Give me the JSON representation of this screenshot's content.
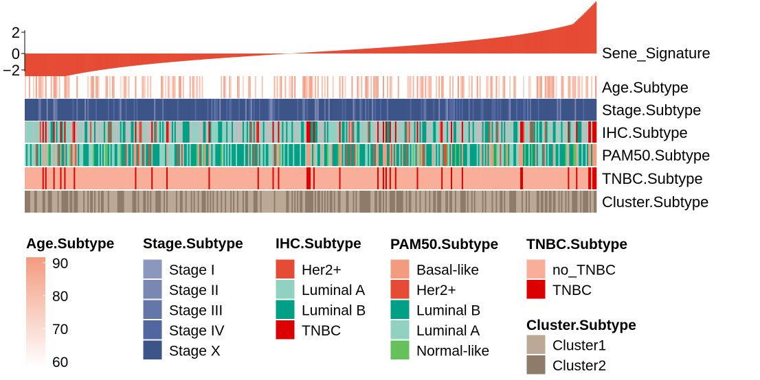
{
  "chart_data": {
    "type": "heatmap",
    "signature": {
      "label": "Sene_Signature",
      "y_ticks": [
        "2",
        "0",
        "−2"
      ],
      "ylim": [
        -2.2,
        2.5
      ],
      "color": "#E64B35",
      "n_samples": 420
    },
    "tracks": [
      {
        "key": "age",
        "label": "Age.Subtype"
      },
      {
        "key": "stage",
        "label": "Stage.Subtype"
      },
      {
        "key": "ihc",
        "label": "IHC.Subtype"
      },
      {
        "key": "pam50",
        "label": "PAM50.Subtype"
      },
      {
        "key": "tnbc",
        "label": "TNBC.Subtype"
      },
      {
        "key": "cluster",
        "label": "Cluster.Subtype"
      }
    ],
    "legends": {
      "age": {
        "title": "Age.Subtype",
        "ticks": [
          "90",
          "80",
          "70",
          "60"
        ],
        "range": [
          60,
          90
        ],
        "low_color": "#FFFFFF",
        "high_color": "#F39B7F"
      },
      "stage": {
        "title": "Stage.Subtype",
        "items": [
          {
            "label": "Stage I",
            "color": "#8B97BD"
          },
          {
            "label": "Stage II",
            "color": "#7A87B3"
          },
          {
            "label": "Stage III",
            "color": "#6576A8"
          },
          {
            "label": "Stage IV",
            "color": "#52669F"
          },
          {
            "label": "Stage X",
            "color": "#3C5488"
          }
        ]
      },
      "ihc": {
        "title": "IHC.Subtype",
        "items": [
          {
            "label": "Her2+",
            "color": "#E64B35"
          },
          {
            "label": "Luminal A",
            "color": "#91D1C2"
          },
          {
            "label": "Luminal B",
            "color": "#00A087"
          },
          {
            "label": "TNBC",
            "color": "#DC0000"
          }
        ]
      },
      "pam50": {
        "title": "PAM50.Subtype",
        "items": [
          {
            "label": "Basal-like",
            "color": "#F39B7F"
          },
          {
            "label": "Her2+",
            "color": "#E64B35"
          },
          {
            "label": "Luminal B",
            "color": "#00A087"
          },
          {
            "label": "Luminal A",
            "color": "#91D1C2"
          },
          {
            "label": "Normal-like",
            "color": "#66C05B"
          }
        ]
      },
      "tnbc": {
        "title": "TNBC.Subtype",
        "items": [
          {
            "label": "no_TNBC",
            "color": "#F8AE98"
          },
          {
            "label": "TNBC",
            "color": "#DC0000"
          }
        ]
      },
      "cluster": {
        "title": "Cluster.Subtype",
        "items": [
          {
            "label": "Cluster1",
            "color": "#BBA996"
          },
          {
            "label": "Cluster2",
            "color": "#8F7B69"
          }
        ]
      }
    }
  }
}
